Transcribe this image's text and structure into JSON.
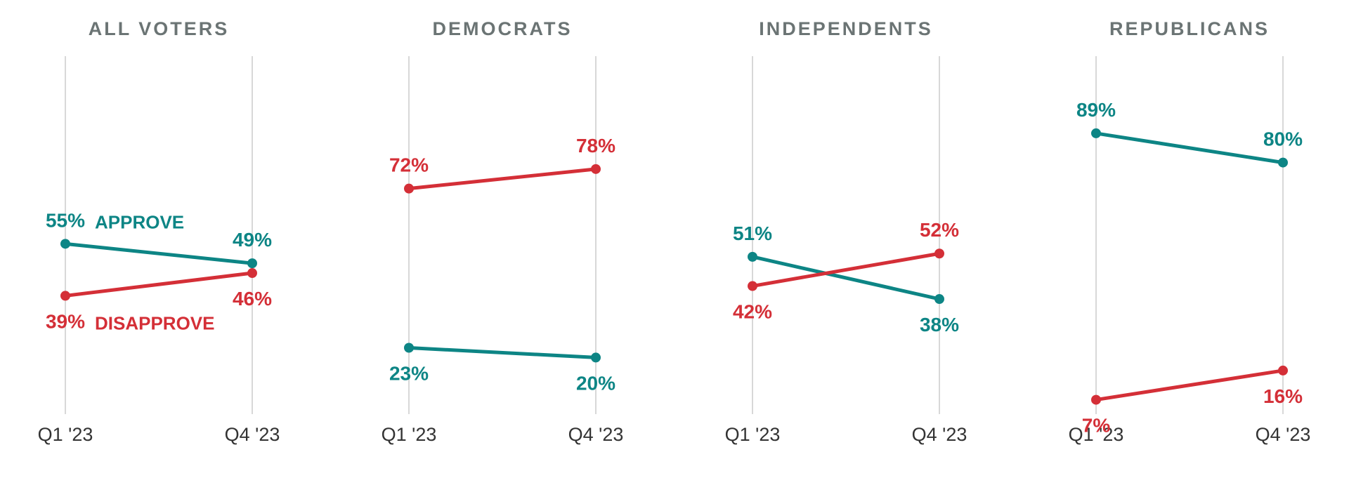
{
  "colors": {
    "approve": "#0d8585",
    "disapprove": "#d42f37",
    "title": "#6b7474",
    "grid": "#d8d8d8",
    "tick": "#333333"
  },
  "chart_data": [
    {
      "type": "line",
      "title": "ALL VOTERS",
      "x": [
        "Q1 '23",
        "Q4 '23"
      ],
      "ylim": [
        0,
        100
      ],
      "series": [
        {
          "name": "APPROVE",
          "values": [
            55,
            49
          ],
          "labels": [
            "55%",
            "49%"
          ]
        },
        {
          "name": "DISAPPROVE",
          "values": [
            39,
            46
          ],
          "labels": [
            "39%",
            "46%"
          ]
        }
      ]
    },
    {
      "type": "line",
      "title": "DEMOCRATS",
      "x": [
        "Q1 '23",
        "Q4 '23"
      ],
      "ylim": [
        0,
        100
      ],
      "series": [
        {
          "values": [
            23,
            20
          ],
          "labels": [
            "23%",
            "20%"
          ]
        },
        {
          "values": [
            72,
            78
          ],
          "labels": [
            "72%",
            "78%"
          ]
        }
      ]
    },
    {
      "type": "line",
      "title": "INDEPENDENTS",
      "x": [
        "Q1 '23",
        "Q4 '23"
      ],
      "ylim": [
        0,
        100
      ],
      "series": [
        {
          "values": [
            51,
            38
          ],
          "labels": [
            "51%",
            "38%"
          ]
        },
        {
          "values": [
            42,
            52
          ],
          "labels": [
            "42%",
            "52%"
          ]
        }
      ]
    },
    {
      "type": "line",
      "title": "REPUBLICANS",
      "x": [
        "Q1 '23",
        "Q4 '23"
      ],
      "ylim": [
        0,
        100
      ],
      "series": [
        {
          "values": [
            89,
            80
          ],
          "labels": [
            "89%",
            "80%"
          ]
        },
        {
          "values": [
            7,
            16
          ],
          "labels": [
            "7%",
            "16%"
          ]
        }
      ]
    }
  ]
}
